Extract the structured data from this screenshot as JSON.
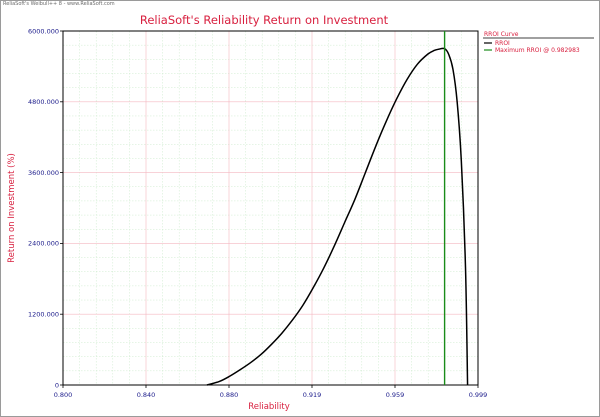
{
  "header": {
    "watermark": "ReliaSoft's Weibull++ 8 - www.ReliaSoft.com"
  },
  "chart_data": {
    "type": "line",
    "title": "ReliaSoft's Reliability Return on Investment",
    "xlabel": "Reliability",
    "ylabel": "Return on Investment (%)",
    "xlim": [
      0.8,
      0.999
    ],
    "ylim": [
      0,
      6000
    ],
    "x_ticks": [
      "0.800",
      "0.840",
      "0.880",
      "0.919",
      "0.959",
      "0.999"
    ],
    "y_ticks": [
      "0",
      "1200.000",
      "2400.000",
      "3600.000",
      "4800.000",
      "6000.000"
    ],
    "grid": true,
    "legend": {
      "placement": "right",
      "title": "RROI Curve",
      "entries": [
        "RROI",
        "Maximum RROI @ 0.982983"
      ]
    },
    "series": [
      {
        "name": "RROI",
        "color": "#000000",
        "x": [
          0.869,
          0.875,
          0.88,
          0.885,
          0.89,
          0.895,
          0.9,
          0.905,
          0.91,
          0.915,
          0.92,
          0.925,
          0.93,
          0.935,
          0.94,
          0.945,
          0.95,
          0.955,
          0.96,
          0.965,
          0.97,
          0.975,
          0.978,
          0.98,
          0.983,
          0.985,
          0.987,
          0.989,
          0.991,
          0.993,
          0.994
        ],
        "y": [
          0,
          60,
          150,
          260,
          380,
          520,
          690,
          880,
          1100,
          1350,
          1650,
          1980,
          2350,
          2750,
          3150,
          3600,
          4050,
          4470,
          4850,
          5180,
          5440,
          5610,
          5670,
          5690,
          5700,
          5600,
          5350,
          4800,
          3800,
          2000,
          0
        ]
      },
      {
        "name": "Maximum RROI @ 0.982983",
        "color": "#1a8c1a",
        "type": "vertical-line",
        "x_value": 0.982983
      }
    ]
  }
}
